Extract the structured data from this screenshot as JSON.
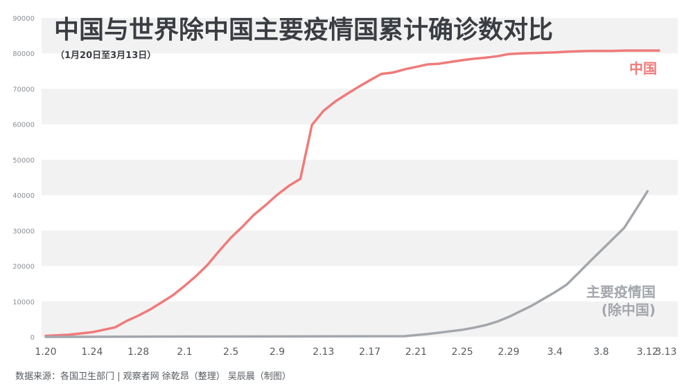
{
  "title": "中国与世界除中国主要疫情国累计确诊数对比",
  "subtitle": "（1月20日至3月13日）",
  "source": "数据来源：各国卫生部门   |  观察者网 徐乾昂（整理） 吴辰晨（制图）",
  "colors": {
    "china": "#f07a7a",
    "world": "#a3a7ac",
    "band": "#f2f2f2",
    "axis_text": "#555a5f"
  },
  "chart_data": {
    "type": "line",
    "x_tick_labels": [
      "1.20",
      "1.24",
      "1.28",
      "2.1",
      "2.5",
      "2.9",
      "2.13",
      "2.17",
      "2.21",
      "2.25",
      "2.29",
      "3.4",
      "3.8",
      "3.12",
      "3.13"
    ],
    "ylim": [
      0,
      90000
    ],
    "y_ticks": [
      "0",
      "10000",
      "20000",
      "30000",
      "40000",
      "50000",
      "60000",
      "70000",
      "80000",
      "90000"
    ],
    "grid": "alternating horizontal bands",
    "series": [
      {
        "name": "中国",
        "points": [
          {
            "x": "1.20",
            "y": 300
          },
          {
            "x": "1.22",
            "y": 600
          },
          {
            "x": "1.24",
            "y": 1300
          },
          {
            "x": "1.26",
            "y": 2700
          },
          {
            "x": "1.27",
            "y": 4500
          },
          {
            "x": "1.28",
            "y": 6000
          },
          {
            "x": "1.29",
            "y": 7700
          },
          {
            "x": "1.30",
            "y": 9700
          },
          {
            "x": "1.31",
            "y": 11800
          },
          {
            "x": "2.1",
            "y": 14400
          },
          {
            "x": "2.2",
            "y": 17200
          },
          {
            "x": "2.3",
            "y": 20400
          },
          {
            "x": "2.4",
            "y": 24300
          },
          {
            "x": "2.5",
            "y": 28000
          },
          {
            "x": "2.6",
            "y": 31100
          },
          {
            "x": "2.7",
            "y": 34500
          },
          {
            "x": "2.8",
            "y": 37200
          },
          {
            "x": "2.9",
            "y": 40100
          },
          {
            "x": "2.10",
            "y": 42600
          },
          {
            "x": "2.11",
            "y": 44600
          },
          {
            "x": "2.12",
            "y": 59800
          },
          {
            "x": "2.13",
            "y": 63800
          },
          {
            "x": "2.14",
            "y": 66400
          },
          {
            "x": "2.15",
            "y": 68500
          },
          {
            "x": "2.16",
            "y": 70500
          },
          {
            "x": "2.17",
            "y": 72400
          },
          {
            "x": "2.18",
            "y": 74200
          },
          {
            "x": "2.19",
            "y": 74600
          },
          {
            "x": "2.20",
            "y": 75500
          },
          {
            "x": "2.21",
            "y": 76200
          },
          {
            "x": "2.22",
            "y": 76900
          },
          {
            "x": "2.23",
            "y": 77100
          },
          {
            "x": "2.24",
            "y": 77600
          },
          {
            "x": "2.25",
            "y": 78100
          },
          {
            "x": "2.26",
            "y": 78500
          },
          {
            "x": "2.27",
            "y": 78800
          },
          {
            "x": "2.28",
            "y": 79200
          },
          {
            "x": "2.29",
            "y": 79800
          },
          {
            "x": "3.1",
            "y": 80000
          },
          {
            "x": "3.2",
            "y": 80100
          },
          {
            "x": "3.3",
            "y": 80200
          },
          {
            "x": "3.4",
            "y": 80300
          },
          {
            "x": "3.5",
            "y": 80500
          },
          {
            "x": "3.6",
            "y": 80600
          },
          {
            "x": "3.7",
            "y": 80700
          },
          {
            "x": "3.8",
            "y": 80700
          },
          {
            "x": "3.9",
            "y": 80700
          },
          {
            "x": "3.10",
            "y": 80800
          },
          {
            "x": "3.11",
            "y": 80800
          },
          {
            "x": "3.12",
            "y": 80800
          },
          {
            "x": "3.13",
            "y": 80800
          }
        ]
      },
      {
        "name": "主要疫情国（除中国）",
        "points": [
          {
            "x": "1.20",
            "y": 0
          },
          {
            "x": "2.1",
            "y": 100
          },
          {
            "x": "2.20",
            "y": 200
          },
          {
            "x": "2.21",
            "y": 500
          },
          {
            "x": "2.22",
            "y": 800
          },
          {
            "x": "2.23",
            "y": 1200
          },
          {
            "x": "2.24",
            "y": 1600
          },
          {
            "x": "2.25",
            "y": 2000
          },
          {
            "x": "2.26",
            "y": 2600
          },
          {
            "x": "2.27",
            "y": 3300
          },
          {
            "x": "2.28",
            "y": 4300
          },
          {
            "x": "2.29",
            "y": 5600
          },
          {
            "x": "3.1",
            "y": 7200
          },
          {
            "x": "3.2",
            "y": 8800
          },
          {
            "x": "3.3",
            "y": 10700
          },
          {
            "x": "3.4",
            "y": 12600
          },
          {
            "x": "3.5",
            "y": 14700
          },
          {
            "x": "3.6",
            "y": 17900
          },
          {
            "x": "3.7",
            "y": 21200
          },
          {
            "x": "3.8",
            "y": 24400
          },
          {
            "x": "3.9",
            "y": 27600
          },
          {
            "x": "3.10",
            "y": 30800
          },
          {
            "x": "3.11",
            "y": 35900
          },
          {
            "x": "3.12",
            "y": 41100
          }
        ]
      }
    ]
  },
  "labels": {
    "china": "中国",
    "world_line1": "主要疫情国",
    "world_line2": "(除中国)"
  }
}
